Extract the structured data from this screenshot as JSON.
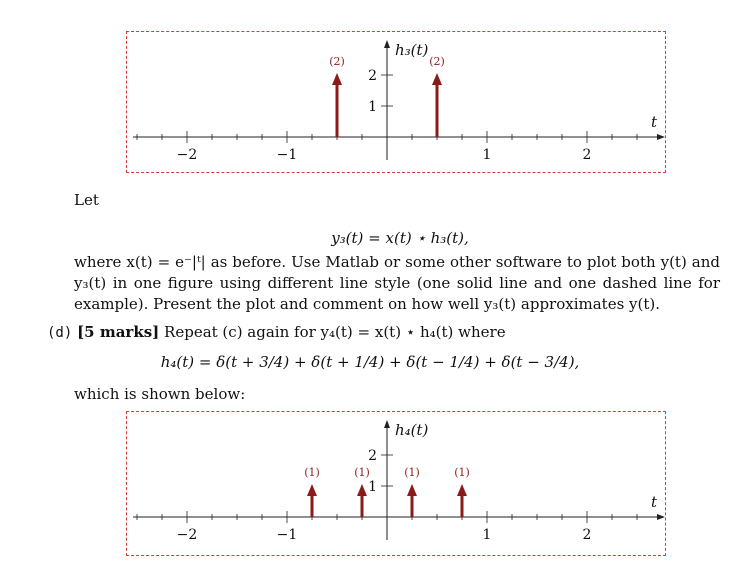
{
  "plot1": {
    "ylabel": "h₃(t)",
    "xlabel": "t",
    "x_ticks": [
      "−2",
      "−1",
      "1",
      "2"
    ],
    "y_ticks": [
      "1",
      "2"
    ],
    "impulses": [
      {
        "t": -0.5,
        "label": "(2)"
      },
      {
        "t": 0.5,
        "label": "(2)"
      }
    ],
    "accent": "#8b1a1a",
    "frame_color": "#d43b3b"
  },
  "text": {
    "let": "Let",
    "eq_y3": "y₃(t) = x(t) ⋆ h₃(t),",
    "para1": "where x(t) = e⁻|ᵗ| as before. Use Matlab or some other software to plot both y(t) and y₃(t) in one figure using different line style (one solid line and one dashed line for example). Present the plot and comment on how well y₃(t) approximates y(t).",
    "part_d_label": "(d)",
    "part_d_marks": "[5 marks]",
    "part_d_text": "Repeat (c) again for y₄(t) = x(t) ⋆ h₄(t) where",
    "eq_h4": "h₄(t) = δ(t + 3/4) + δ(t + 1/4) + δ(t − 1/4) + δ(t − 3/4),",
    "shown_below": "which is shown below:"
  },
  "plot2": {
    "ylabel": "h₄(t)",
    "xlabel": "t",
    "x_ticks": [
      "−2",
      "−1",
      "1",
      "2"
    ],
    "y_ticks": [
      "1",
      "2"
    ],
    "impulses": [
      {
        "t": -0.75,
        "label": "(1)"
      },
      {
        "t": -0.25,
        "label": "(1)"
      },
      {
        "t": 0.25,
        "label": "(1)"
      },
      {
        "t": 0.75,
        "label": "(1)"
      }
    ],
    "accent": "#8b1a1a",
    "frame_color": "#d43b3b"
  }
}
